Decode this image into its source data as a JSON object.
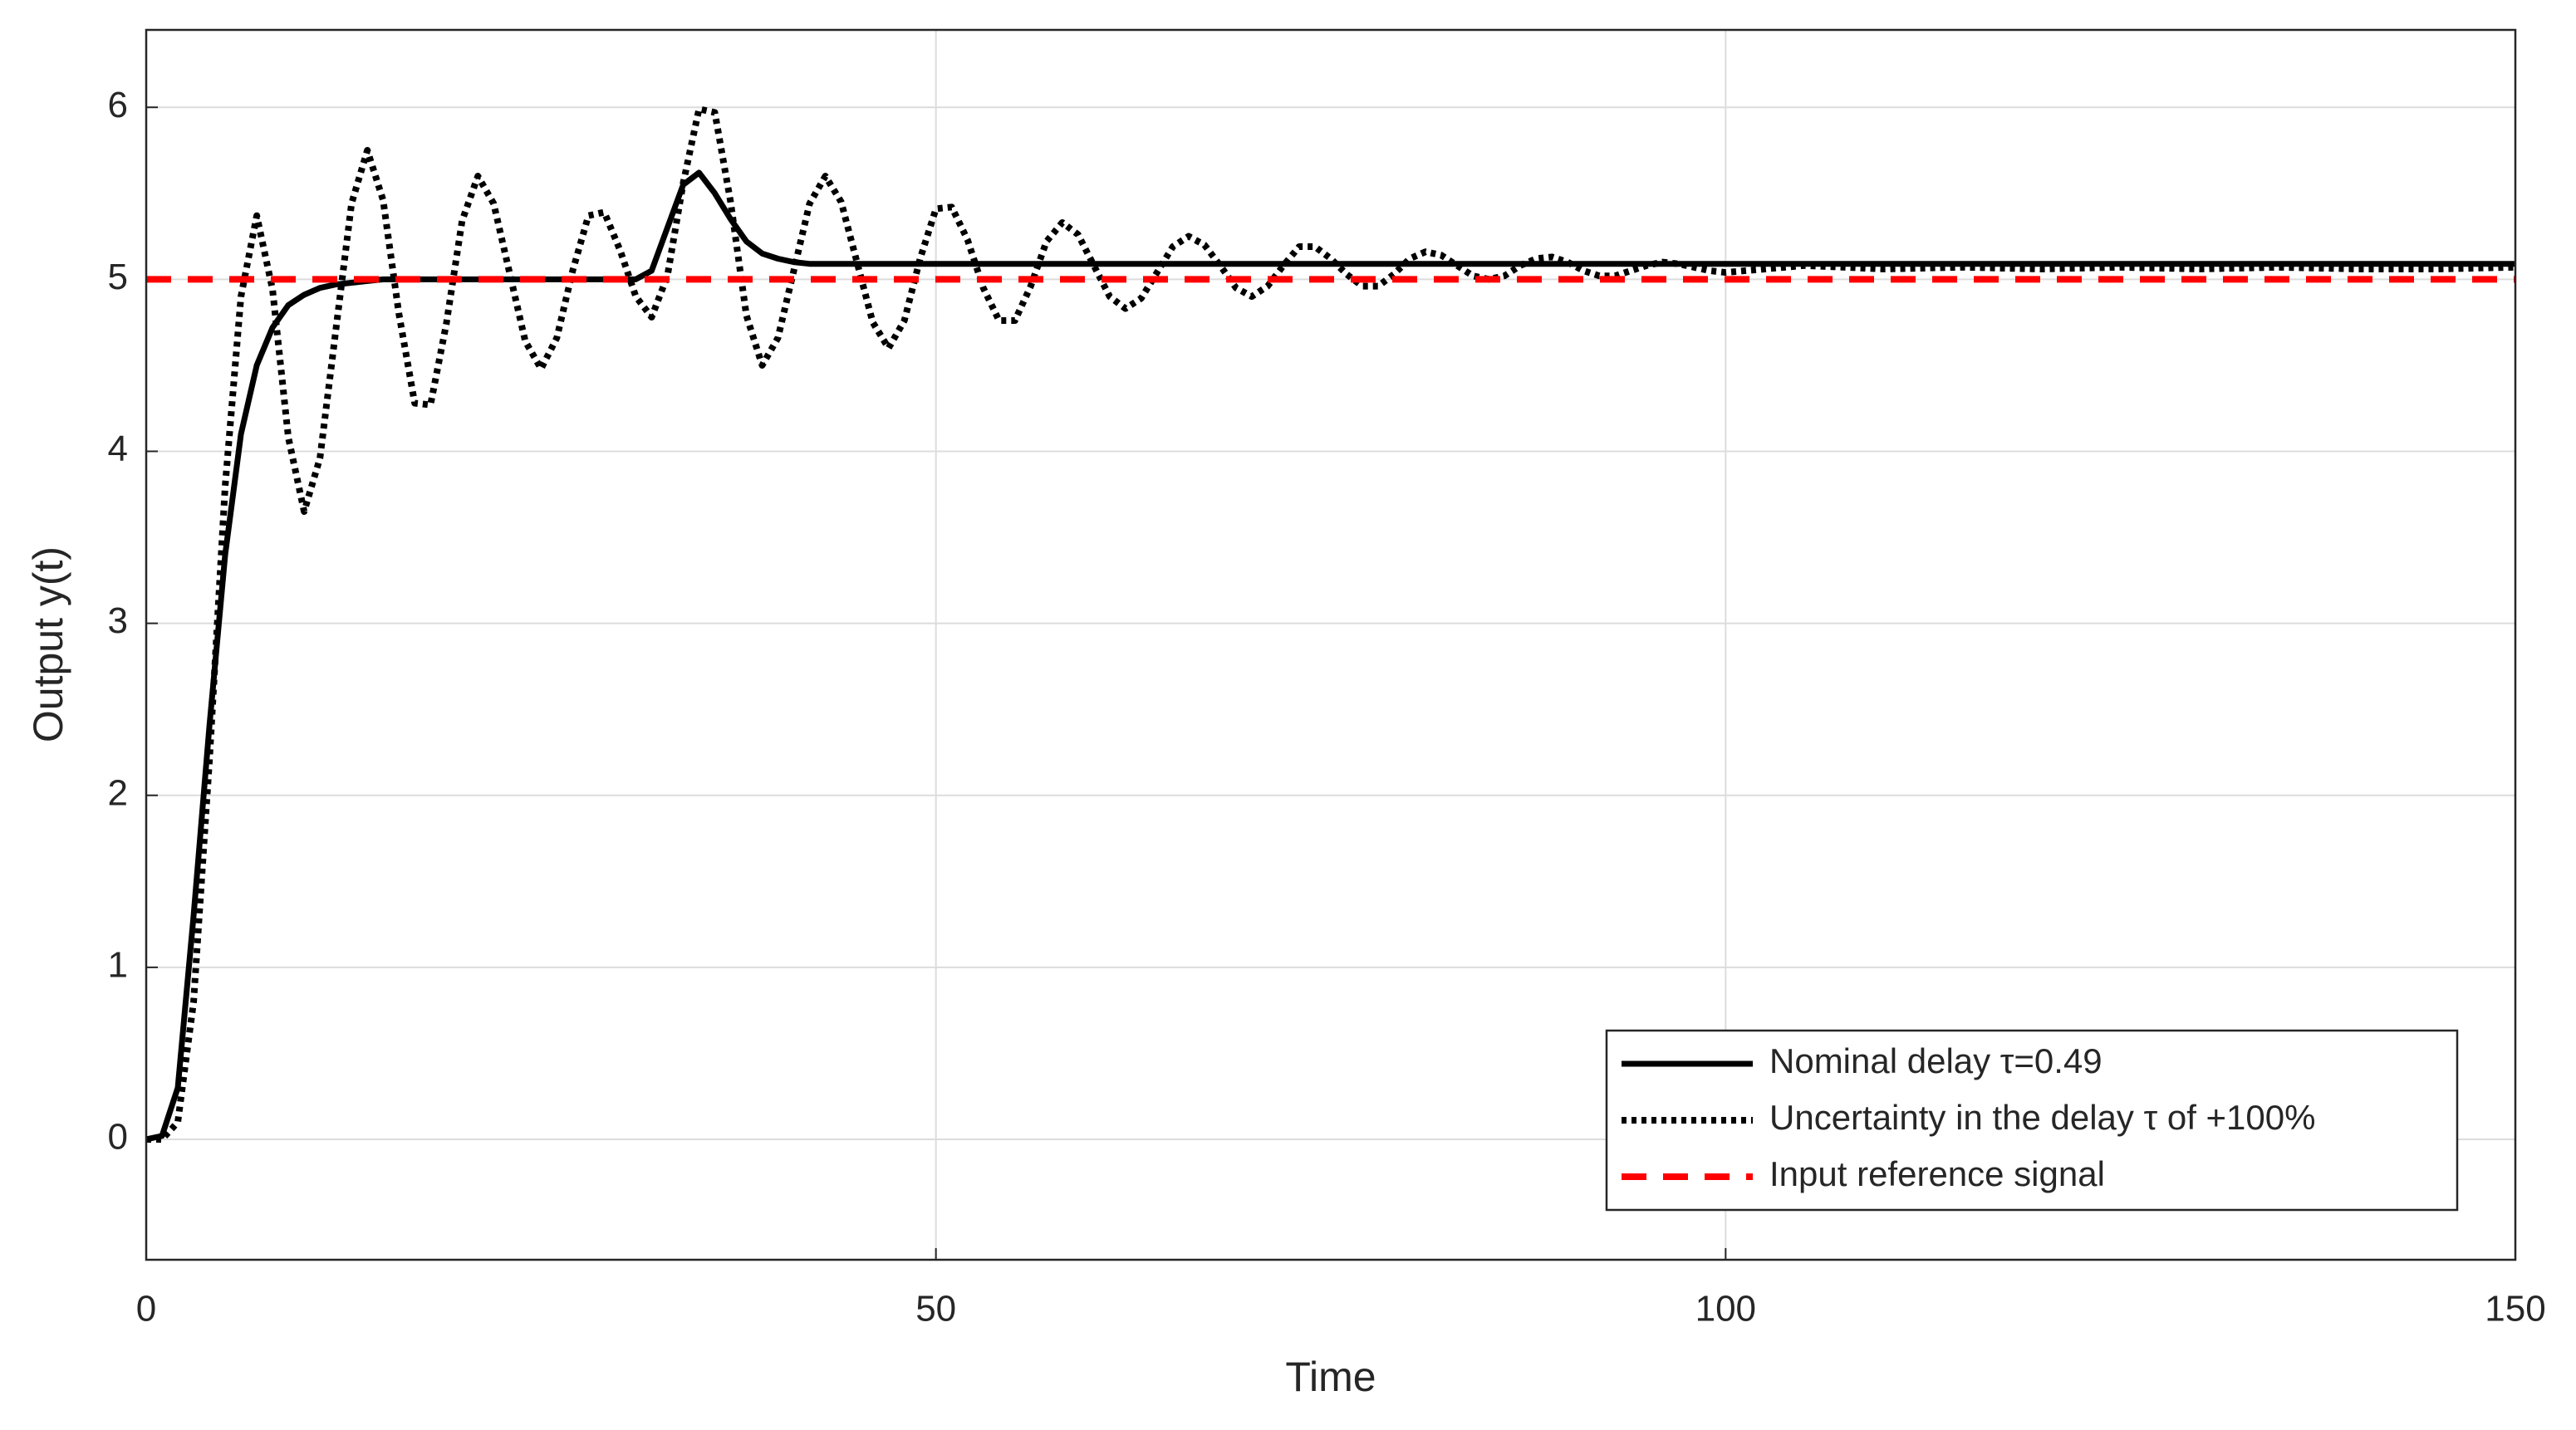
{
  "chart_data": {
    "type": "line",
    "xlabel": "Time",
    "ylabel": "Output y(t)",
    "xlim": [
      0,
      150
    ],
    "ylim": [
      -0.7,
      6.45
    ],
    "xticks": [
      0,
      50,
      100,
      150
    ],
    "yticks": [
      0,
      1,
      2,
      3,
      4,
      5,
      6
    ],
    "grid": true,
    "legend": "lower right",
    "x": [
      0,
      1,
      2,
      3,
      4,
      5,
      6,
      7,
      8,
      9,
      10,
      11,
      12,
      13,
      14,
      15,
      16,
      17,
      18,
      19,
      20,
      21,
      22,
      23,
      24,
      25,
      26,
      27,
      28,
      29,
      30,
      31,
      32,
      33,
      34,
      35,
      36,
      37,
      38,
      39,
      40,
      41,
      42,
      43,
      44,
      45,
      46,
      47,
      48,
      49,
      50,
      51,
      52,
      53,
      54,
      55,
      56,
      57,
      58,
      59,
      60,
      61,
      62,
      63,
      64,
      65,
      66,
      67,
      68,
      69,
      70,
      71,
      72,
      73,
      74,
      75,
      76,
      77,
      78,
      79,
      80,
      81,
      82,
      83,
      84,
      85,
      86,
      87,
      88,
      89,
      90,
      91,
      92,
      93,
      94,
      95,
      96,
      97,
      98,
      99,
      100,
      105,
      110,
      115,
      120,
      125,
      130,
      135,
      140,
      145,
      150
    ],
    "series": [
      {
        "name": "Nominal delay τ=0.49",
        "color": "#000000",
        "style": "solid",
        "values": [
          0,
          0.02,
          0.3,
          1.3,
          2.4,
          3.4,
          4.1,
          4.5,
          4.72,
          4.85,
          4.91,
          4.95,
          4.97,
          4.98,
          4.99,
          5.0,
          5.0,
          5.0,
          5.0,
          5.0,
          5.0,
          5.0,
          5.0,
          5.0,
          5.0,
          5.0,
          5.0,
          5.0,
          5.0,
          5.0,
          5.0,
          5.0,
          5.05,
          5.3,
          5.55,
          5.62,
          5.5,
          5.35,
          5.22,
          5.15,
          5.12,
          5.1,
          5.09,
          5.09,
          5.09,
          5.09,
          5.09,
          5.09,
          5.09,
          5.09,
          5.09,
          5.09,
          5.09,
          5.09,
          5.09,
          5.09,
          5.09,
          5.09,
          5.09,
          5.09,
          5.09,
          5.09,
          5.09,
          5.09,
          5.09,
          5.09,
          5.09,
          5.09,
          5.09,
          5.09,
          5.09,
          5.09,
          5.09,
          5.09,
          5.09,
          5.09,
          5.09,
          5.09,
          5.09,
          5.09,
          5.09,
          5.09,
          5.09,
          5.09,
          5.09,
          5.09,
          5.09,
          5.09,
          5.09,
          5.09,
          5.09,
          5.09,
          5.09,
          5.09,
          5.09,
          5.09,
          5.09,
          5.09,
          5.09,
          5.09,
          5.09,
          5.09,
          5.09,
          5.09,
          5.09,
          5.09,
          5.09,
          5.09,
          5.09,
          5.09,
          5.09
        ]
      },
      {
        "name": "Uncertainty in the delay τ of +100%",
        "color": "#000000",
        "style": "dotted",
        "values": [
          0,
          0,
          0.1,
          0.8,
          2.2,
          3.8,
          4.9,
          5.37,
          4.94,
          4.08,
          3.65,
          3.96,
          4.7,
          5.44,
          5.75,
          5.46,
          4.8,
          4.28,
          4.27,
          4.74,
          5.34,
          5.6,
          5.44,
          5.04,
          4.64,
          4.48,
          4.66,
          5.05,
          5.37,
          5.39,
          5.17,
          4.9,
          4.78,
          5.02,
          5.56,
          5.99,
          5.97,
          5.45,
          4.79,
          4.5,
          4.66,
          5.05,
          5.44,
          5.6,
          5.45,
          5.1,
          4.75,
          4.6,
          4.76,
          5.12,
          5.41,
          5.42,
          5.23,
          4.95,
          4.76,
          4.76,
          4.96,
          5.22,
          5.33,
          5.26,
          5.08,
          4.9,
          4.83,
          4.89,
          5.04,
          5.19,
          5.25,
          5.2,
          5.08,
          4.95,
          4.9,
          4.96,
          5.08,
          5.19,
          5.19,
          5.12,
          5.03,
          4.96,
          4.96,
          5.03,
          5.12,
          5.16,
          5.14,
          5.08,
          5.02,
          5.0,
          5.02,
          5.08,
          5.12,
          5.13,
          5.1,
          5.05,
          5.02,
          5.02,
          5.05,
          5.08,
          5.1,
          5.09,
          5.07,
          5.05,
          5.04,
          5.08,
          5.06,
          5.07,
          5.06,
          5.07,
          5.06,
          5.07,
          5.06,
          5.06,
          5.07
        ]
      },
      {
        "name": "Input reference signal",
        "color": "#ff0000",
        "style": "dashed",
        "values": [
          5,
          5,
          5,
          5,
          5,
          5,
          5,
          5,
          5,
          5,
          5,
          5,
          5,
          5,
          5,
          5,
          5,
          5,
          5,
          5,
          5,
          5,
          5,
          5,
          5,
          5,
          5,
          5,
          5,
          5,
          5,
          5,
          5,
          5,
          5,
          5,
          5,
          5,
          5,
          5,
          5,
          5,
          5,
          5,
          5,
          5,
          5,
          5,
          5,
          5,
          5,
          5,
          5,
          5,
          5,
          5,
          5,
          5,
          5,
          5,
          5,
          5,
          5,
          5,
          5,
          5,
          5,
          5,
          5,
          5,
          5,
          5,
          5,
          5,
          5,
          5,
          5,
          5,
          5,
          5,
          5,
          5,
          5,
          5,
          5,
          5,
          5,
          5,
          5,
          5,
          5,
          5,
          5,
          5,
          5,
          5,
          5,
          5,
          5,
          5,
          5,
          5,
          5,
          5,
          5,
          5,
          5,
          5,
          5,
          5,
          5
        ]
      }
    ]
  }
}
